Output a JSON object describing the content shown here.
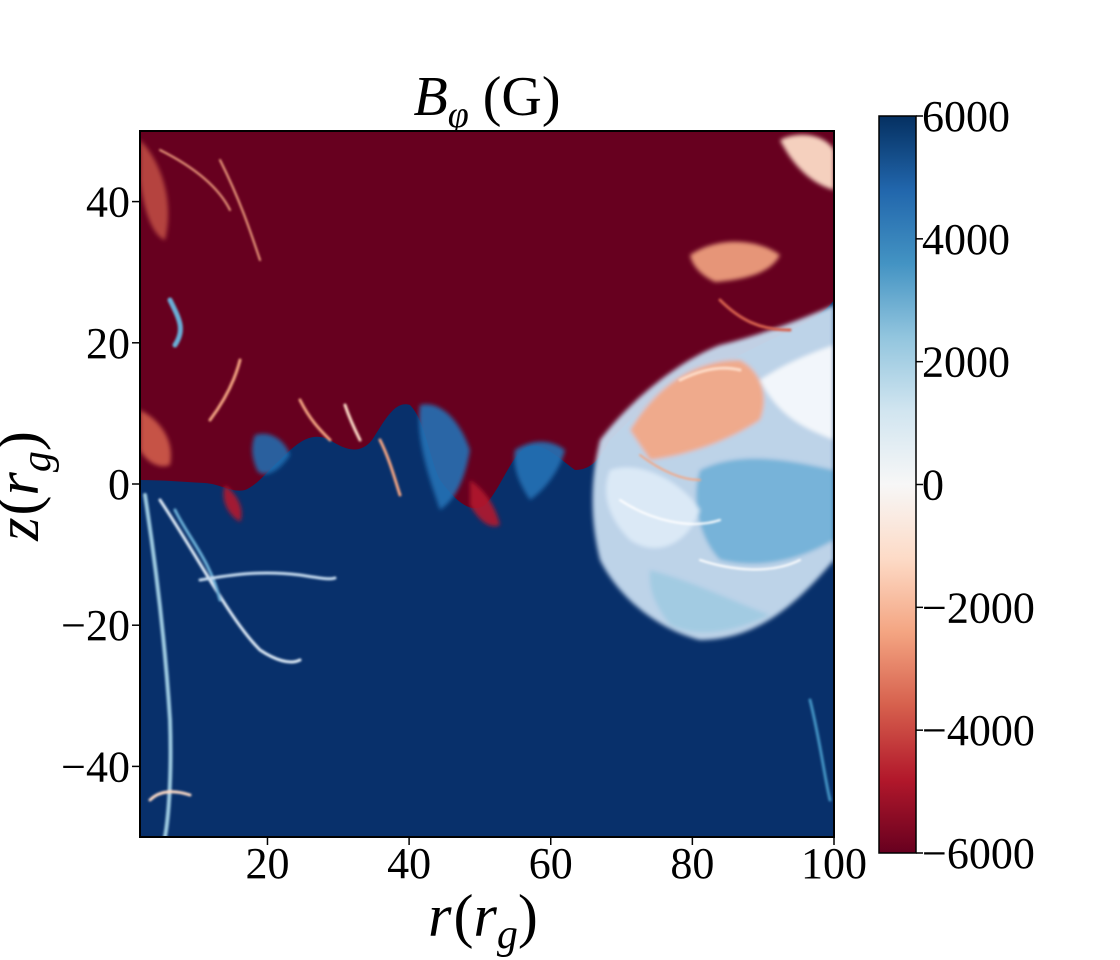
{
  "chart_data": {
    "type": "heatmap",
    "title": {
      "symbol": "B",
      "subscript": "φ",
      "unit": "(G)"
    },
    "xlabel": {
      "symbol": "r",
      "paren_open": "(",
      "inner": "r",
      "inner_sub": "g",
      "paren_close": ")"
    },
    "ylabel": {
      "symbol": "z",
      "paren_open": "(",
      "inner": "r",
      "inner_sub": "g",
      "paren_close": ")"
    },
    "xlim": [
      2,
      100
    ],
    "ylim": [
      -50,
      50
    ],
    "x_ticks": [
      20,
      40,
      60,
      80,
      100
    ],
    "x_tick_labels": [
      "20",
      "40",
      "60",
      "80",
      "100"
    ],
    "y_ticks": [
      40,
      20,
      0,
      -20,
      -40
    ],
    "y_tick_labels": [
      "40",
      "20",
      "0",
      "−20",
      "−40"
    ],
    "colorbar": {
      "range": [
        -6000,
        6000
      ],
      "colormap": "RdBu",
      "ticks": [
        6000,
        4000,
        2000,
        0,
        -2000,
        -4000,
        -6000
      ],
      "tick_labels": [
        "6000",
        "4000",
        "2000",
        "0",
        "−2000",
        "−4000",
        "−6000"
      ],
      "color_stops": [
        "#67001f",
        "#b2182b",
        "#d6604d",
        "#f4a582",
        "#fddbc7",
        "#f7f7f7",
        "#d1e5f0",
        "#92c5de",
        "#4393c3",
        "#2166ac",
        "#053061"
      ]
    },
    "description_regions": {
      "upper_value": -6000,
      "lower_value": 6000
    }
  }
}
